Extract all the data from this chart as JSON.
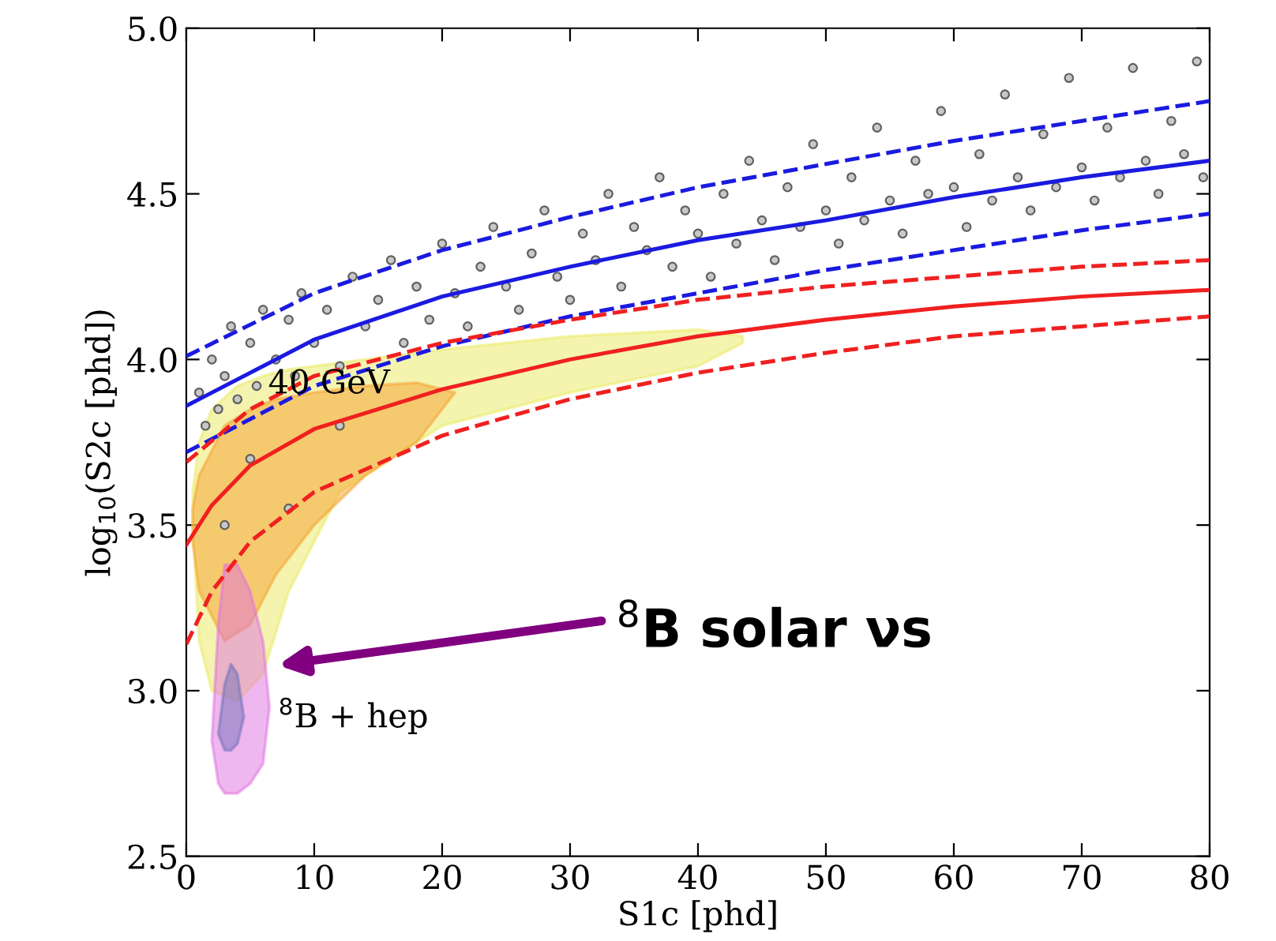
{
  "chart_data": {
    "type": "scatter",
    "xlabel": "S1c [phd]",
    "ylabel": "log$_{10}$(S2c [phd])",
    "xlim": [
      0,
      80
    ],
    "ylim": [
      2.5,
      5.0
    ],
    "xticks": [
      0,
      10,
      20,
      30,
      40,
      50,
      60,
      70,
      80
    ],
    "yticks": [
      {
        "value": 2.5,
        "label": "2.5"
      },
      {
        "value": 3.0,
        "label": "3.0"
      },
      {
        "value": 3.5,
        "label": "3.5"
      },
      {
        "value": 4.0,
        "label": "4.0"
      },
      {
        "value": 4.5,
        "label": "4.5"
      },
      {
        "value": 5.0,
        "label": "5.0"
      }
    ],
    "grid": false,
    "legend": false,
    "series": [
      {
        "type": "scatter",
        "color": "#606060",
        "marker": "circle",
        "x": [
          1,
          1.5,
          2,
          2.5,
          3,
          3.5,
          4,
          5,
          5.5,
          6,
          7,
          8,
          8.5,
          9,
          10,
          11,
          12,
          13,
          14,
          15,
          16,
          17,
          18,
          19,
          20,
          21,
          22,
          23,
          24,
          25,
          26,
          27,
          28,
          29,
          30,
          31,
          32,
          33,
          34,
          35,
          36,
          37,
          38,
          39,
          40,
          41,
          42,
          43,
          44,
          45,
          46,
          47,
          48,
          49,
          50,
          51,
          52,
          53,
          54,
          55,
          56,
          57,
          58,
          59,
          60,
          61,
          62,
          63,
          64,
          65,
          66,
          67,
          68,
          69,
          70,
          71,
          72,
          73,
          74,
          75,
          76,
          77,
          78,
          79,
          79.5,
          5,
          8,
          3,
          12
        ],
        "values": [
          3.9,
          3.8,
          4.0,
          3.85,
          3.95,
          4.1,
          3.88,
          4.05,
          3.92,
          4.15,
          4.0,
          4.12,
          3.95,
          4.2,
          4.05,
          4.15,
          3.98,
          4.25,
          4.1,
          4.18,
          4.3,
          4.05,
          4.22,
          4.12,
          4.35,
          4.2,
          4.1,
          4.28,
          4.4,
          4.22,
          4.15,
          4.32,
          4.45,
          4.25,
          4.18,
          4.38,
          4.3,
          4.5,
          4.22,
          4.4,
          4.33,
          4.55,
          4.28,
          4.45,
          4.38,
          4.25,
          4.5,
          4.35,
          4.6,
          4.42,
          4.3,
          4.52,
          4.4,
          4.65,
          4.45,
          4.35,
          4.55,
          4.42,
          4.7,
          4.48,
          4.38,
          4.6,
          4.5,
          4.75,
          4.52,
          4.4,
          4.62,
          4.48,
          4.8,
          4.55,
          4.45,
          4.68,
          4.52,
          4.85,
          4.58,
          4.48,
          4.7,
          4.55,
          4.88,
          4.6,
          4.5,
          4.72,
          4.62,
          4.9,
          4.55,
          3.7,
          3.55,
          3.5,
          3.8
        ]
      },
      {
        "type": "area",
        "color": "#eaea60",
        "x": [
          0.5,
          1,
          2,
          4,
          6,
          8,
          12,
          20,
          30,
          40,
          43.5
        ],
        "values": [
          null,
          null,
          null,
          null,
          null,
          null,
          null,
          null,
          null,
          null,
          null
        ],
        "upper": [
          3.6,
          3.75,
          3.85,
          3.92,
          3.95,
          3.97,
          3.99,
          4.03,
          4.07,
          4.09,
          4.07
        ],
        "lower": [
          3.5,
          3.15,
          3.0,
          2.97,
          3.05,
          3.3,
          3.6,
          3.8,
          3.9,
          3.98,
          4.05
        ]
      },
      {
        "type": "area",
        "color": "#f5a030",
        "x": [
          0.5,
          1,
          3,
          5,
          7,
          10,
          14,
          18,
          21
        ],
        "values": [
          null,
          null,
          null,
          null,
          null,
          null,
          null,
          null,
          null
        ],
        "upper": [
          3.55,
          3.65,
          3.8,
          3.85,
          3.88,
          3.9,
          3.92,
          3.93,
          3.9
        ],
        "lower": [
          3.45,
          3.3,
          3.15,
          3.2,
          3.35,
          3.5,
          3.65,
          3.75,
          3.9
        ]
      },
      {
        "type": "area",
        "color": "#e070e0",
        "x": [
          2,
          2.5,
          3,
          4,
          5,
          6,
          6.5
        ],
        "values": [
          null,
          null,
          null,
          null,
          null,
          null,
          null
        ],
        "upper": [
          2.85,
          3.2,
          3.38,
          3.38,
          3.3,
          3.15,
          2.95
        ],
        "lower": [
          2.85,
          2.72,
          2.69,
          2.69,
          2.72,
          2.78,
          2.95
        ]
      },
      {
        "type": "area",
        "color": "#7070b8",
        "x": [
          2.5,
          3,
          3.5,
          4,
          4.5
        ],
        "values": [
          null,
          null,
          null,
          null,
          null
        ],
        "upper": [
          2.87,
          3.02,
          3.08,
          3.05,
          2.92
        ],
        "lower": [
          2.87,
          2.82,
          2.82,
          2.84,
          2.92
        ]
      },
      {
        "type": "line",
        "color": "#1a1ae0",
        "line_style": "solid",
        "x": [
          0,
          10,
          20,
          30,
          40,
          50,
          60,
          70,
          80
        ],
        "values": [
          3.86,
          4.06,
          4.19,
          4.28,
          4.36,
          4.42,
          4.49,
          4.55,
          4.6
        ]
      },
      {
        "type": "line",
        "color": "#1a1ae0",
        "line_style": "dashed",
        "x": [
          0,
          10,
          20,
          30,
          40,
          50,
          60,
          70,
          80
        ],
        "values": [
          4.01,
          4.2,
          4.33,
          4.43,
          4.52,
          4.59,
          4.66,
          4.72,
          4.78
        ]
      },
      {
        "type": "line",
        "color": "#1a1ae0",
        "line_style": "dashed",
        "x": [
          0,
          10,
          20,
          30,
          40,
          50,
          60,
          70,
          80
        ],
        "values": [
          3.72,
          3.92,
          4.04,
          4.13,
          4.2,
          4.27,
          4.33,
          4.39,
          4.44
        ]
      },
      {
        "type": "line",
        "color": "#f02020",
        "line_style": "solid",
        "x": [
          0,
          2,
          5,
          10,
          20,
          30,
          40,
          50,
          60,
          70,
          80
        ],
        "values": [
          3.44,
          3.56,
          3.68,
          3.79,
          3.91,
          4.0,
          4.07,
          4.12,
          4.16,
          4.19,
          4.21
        ]
      },
      {
        "type": "line",
        "color": "#f02020",
        "line_style": "dashed",
        "x": [
          0,
          5,
          10,
          20,
          30,
          40,
          50,
          60,
          70,
          80
        ],
        "values": [
          3.69,
          3.85,
          3.95,
          4.05,
          4.12,
          4.18,
          4.22,
          4.25,
          4.28,
          4.3
        ]
      },
      {
        "type": "line",
        "color": "#f02020",
        "line_style": "dashed",
        "x": [
          0,
          2,
          5,
          10,
          20,
          30,
          40,
          50,
          60,
          70,
          80
        ],
        "values": [
          3.14,
          3.3,
          3.45,
          3.6,
          3.77,
          3.88,
          3.96,
          4.02,
          4.07,
          4.1,
          4.13
        ]
      }
    ],
    "annotations": [
      "40 GeV",
      {
        "text": "$^{8}$B + hep",
        "x": 6.5,
        "y": 2.95
      },
      "$^{8}$B solar νs"
    ]
  }
}
